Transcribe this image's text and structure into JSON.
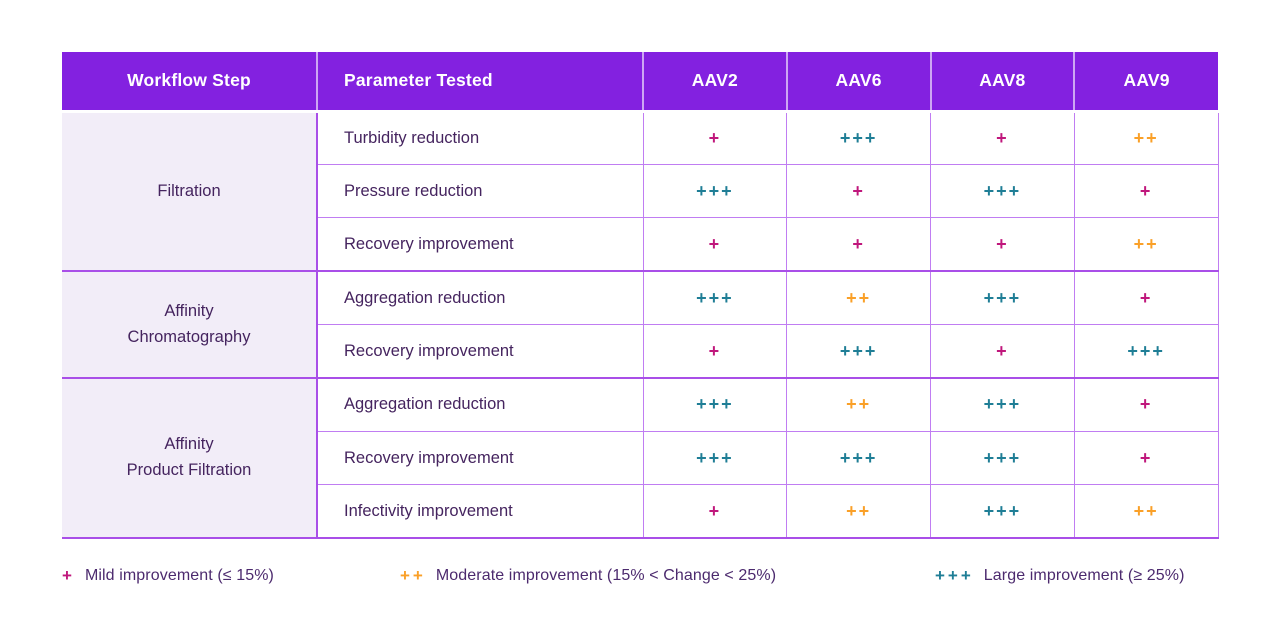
{
  "table": {
    "headers": [
      "Workflow Step",
      "Parameter Tested",
      "AAV2",
      "AAV6",
      "AAV8",
      "AAV9"
    ],
    "groups": [
      {
        "label": "Filtration",
        "rows": [
          {
            "parameter": "Turbidity reduction",
            "scores": [
              "+",
              "+++",
              "+",
              "++"
            ]
          },
          {
            "parameter": "Pressure reduction",
            "scores": [
              "+++",
              "+",
              "+++",
              "+"
            ]
          },
          {
            "parameter": "Recovery improvement",
            "scores": [
              "+",
              "+",
              "+",
              "++"
            ]
          }
        ]
      },
      {
        "label": "Affinity\nChromatography",
        "rows": [
          {
            "parameter": "Aggregation reduction",
            "scores": [
              "+++",
              "++",
              "+++",
              "+"
            ]
          },
          {
            "parameter": "Recovery improvement",
            "scores": [
              "+",
              "+++",
              "+",
              "+++"
            ]
          }
        ]
      },
      {
        "label": "Affinity\nProduct Filtration",
        "rows": [
          {
            "parameter": "Aggregation reduction",
            "scores": [
              "+++",
              "++",
              "+++",
              "+"
            ]
          },
          {
            "parameter": "Recovery improvement",
            "scores": [
              "+++",
              "+++",
              "+++",
              "+"
            ]
          },
          {
            "parameter": "Infectivity improvement",
            "scores": [
              "+",
              "++",
              "+++",
              "++"
            ]
          }
        ]
      }
    ]
  },
  "legend": [
    {
      "symbol": "+",
      "label": "Mild improvement (≤ 15%)"
    },
    {
      "symbol": "++",
      "label": "Moderate improvement (15% < Change < 25%)"
    },
    {
      "symbol": "+++",
      "label": "Large improvement (≥ 25%)"
    }
  ],
  "colors": {
    "mild": "#c0177c",
    "moderate": "#faa028",
    "large": "#1f7e96",
    "header_bg": "#8321e0",
    "group_bg": "#f2edf8",
    "text_dark": "#45245f",
    "grid_light": "#c07df2",
    "grid_strong": "#a94fe8"
  },
  "chart_data": {
    "type": "table",
    "title": "AAV workflow improvement matrix",
    "columns": [
      "Workflow Step",
      "Parameter Tested",
      "AAV2",
      "AAV6",
      "AAV8",
      "AAV9"
    ],
    "rows": [
      [
        "Filtration",
        "Turbidity reduction",
        "+",
        "+++",
        "+",
        "++"
      ],
      [
        "Filtration",
        "Pressure reduction",
        "+++",
        "+",
        "+++",
        "+"
      ],
      [
        "Filtration",
        "Recovery improvement",
        "+",
        "+",
        "+",
        "++"
      ],
      [
        "Affinity Chromatography",
        "Aggregation reduction",
        "+++",
        "++",
        "+++",
        "+"
      ],
      [
        "Affinity Chromatography",
        "Recovery improvement",
        "+",
        "+++",
        "+",
        "+++"
      ],
      [
        "Affinity Product Filtration",
        "Aggregation reduction",
        "+++",
        "++",
        "+++",
        "+"
      ],
      [
        "Affinity Product Filtration",
        "Recovery improvement",
        "+++",
        "+++",
        "+++",
        "+"
      ],
      [
        "Affinity Product Filtration",
        "Infectivity improvement",
        "+",
        "++",
        "+++",
        "++"
      ]
    ],
    "legend": [
      "+ Mild improvement (≤ 15%)",
      "++ Moderate improvement (15% < Change < 25%)",
      "+++ Large improvement (≥ 25%)"
    ],
    "legend_position": "bottom"
  }
}
